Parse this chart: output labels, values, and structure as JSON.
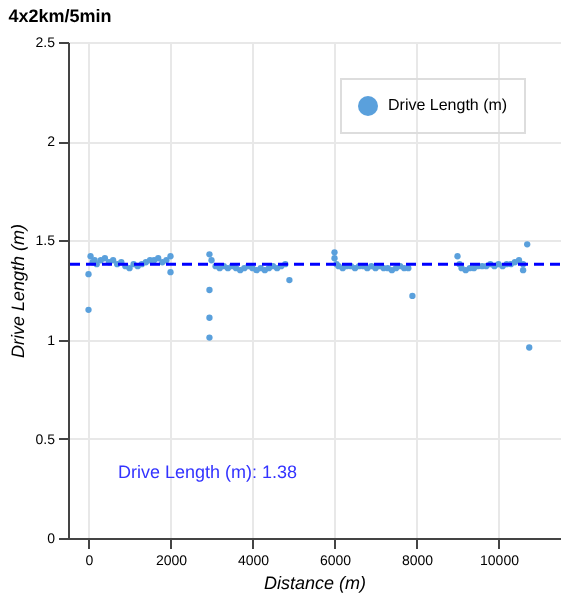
{
  "chart_data": {
    "type": "scatter",
    "title": "4x2km/5min",
    "xlabel": "Distance (m)",
    "ylabel": "Drive Length (m)",
    "xlim": [
      -500,
      11500
    ],
    "xticks": [
      0,
      2000,
      4000,
      6000,
      8000,
      10000
    ],
    "ylim": [
      0,
      2.5
    ],
    "yticks": [
      0,
      0.5,
      1,
      1.5,
      2,
      2.5
    ],
    "grid": true,
    "legend": "top right",
    "marker": "circle",
    "series": [
      {
        "name": "Drive Length (m)",
        "color": "#5aa0dc",
        "x": [
          0,
          0,
          50,
          100,
          150,
          200,
          300,
          400,
          500,
          600,
          700,
          800,
          900,
          1000,
          1100,
          1200,
          1300,
          1400,
          1500,
          1600,
          1700,
          1800,
          1900,
          2000,
          2000,
          2950,
          2950,
          2950,
          2950,
          3000,
          3100,
          3200,
          3300,
          3400,
          3500,
          3600,
          3700,
          3800,
          3900,
          4000,
          4100,
          4200,
          4300,
          4400,
          4500,
          4600,
          4700,
          4800,
          4900,
          6000,
          6000,
          6050,
          6100,
          6200,
          6300,
          6400,
          6500,
          6600,
          6700,
          6800,
          6900,
          7000,
          7100,
          7200,
          7300,
          7400,
          7500,
          7600,
          7700,
          7800,
          7900,
          9000,
          9050,
          9100,
          9200,
          9300,
          9400,
          9500,
          9600,
          9700,
          9800,
          9900,
          10000,
          10100,
          10200,
          10300,
          10400,
          10500,
          10600,
          10600,
          10700,
          10750
        ],
        "values": [
          1.33,
          1.15,
          1.42,
          1.39,
          1.4,
          1.38,
          1.4,
          1.41,
          1.39,
          1.4,
          1.38,
          1.39,
          1.37,
          1.36,
          1.38,
          1.37,
          1.38,
          1.39,
          1.4,
          1.4,
          1.41,
          1.39,
          1.4,
          1.42,
          1.34,
          1.43,
          1.25,
          1.11,
          1.01,
          1.4,
          1.37,
          1.36,
          1.37,
          1.36,
          1.37,
          1.36,
          1.35,
          1.36,
          1.37,
          1.36,
          1.35,
          1.36,
          1.35,
          1.36,
          1.37,
          1.36,
          1.37,
          1.38,
          1.3,
          1.44,
          1.41,
          1.38,
          1.37,
          1.36,
          1.37,
          1.37,
          1.36,
          1.37,
          1.37,
          1.36,
          1.37,
          1.36,
          1.37,
          1.36,
          1.36,
          1.35,
          1.36,
          1.37,
          1.36,
          1.36,
          1.22,
          1.42,
          1.38,
          1.36,
          1.35,
          1.36,
          1.36,
          1.37,
          1.37,
          1.37,
          1.38,
          1.37,
          1.38,
          1.37,
          1.38,
          1.38,
          1.39,
          1.4,
          1.38,
          1.35,
          1.48,
          0.96
        ]
      }
    ],
    "ref_lines": [
      {
        "axis": "y",
        "value": 1.38,
        "color": "#0000ff",
        "line_style": "dashed"
      }
    ],
    "annotations": [
      "Drive Length (m):   1.38"
    ]
  }
}
